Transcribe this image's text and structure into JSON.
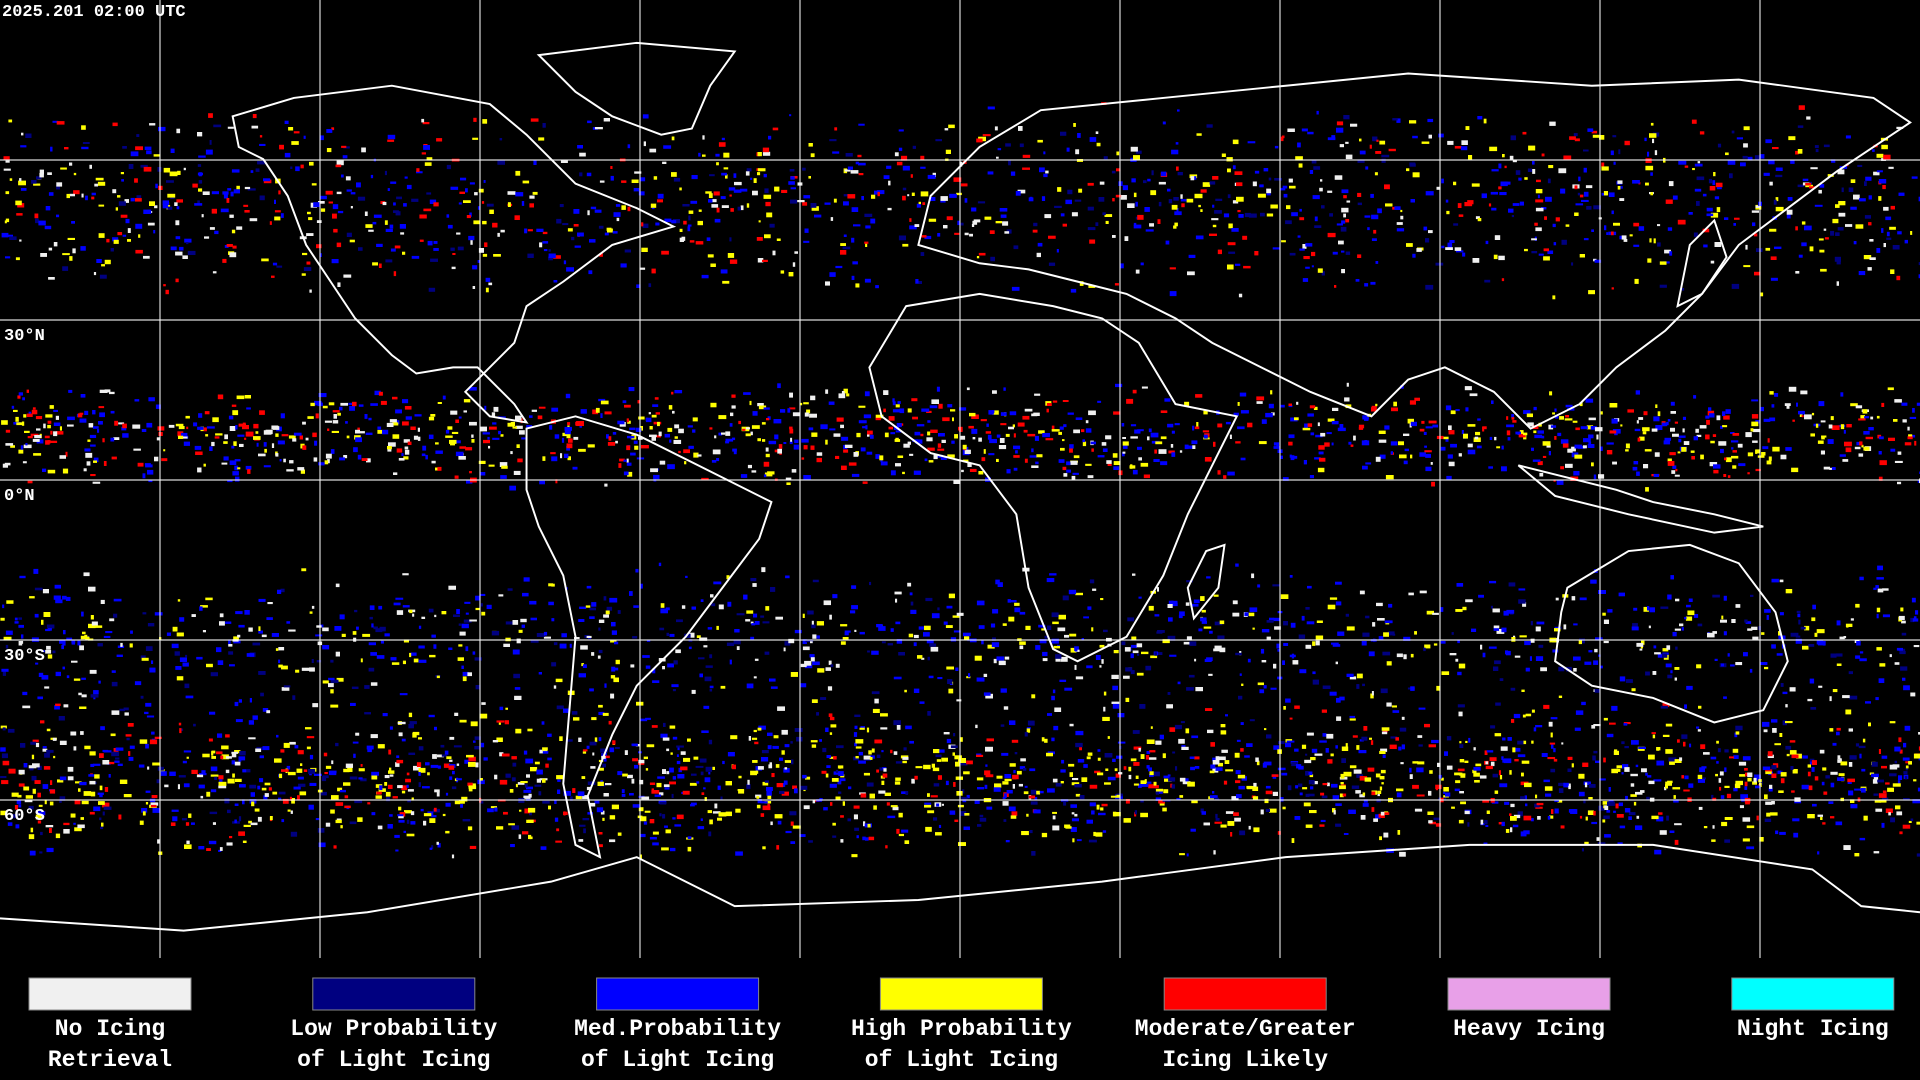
{
  "header": {
    "timestamp": "2025.201 02:00 UTC"
  },
  "map": {
    "latitude_labels": [
      "30°N",
      "0°N",
      "30°S",
      "60°S"
    ]
  },
  "legend": [
    {
      "label_lines": [
        "No Icing",
        "Retrieval"
      ],
      "color": "#f0f0f0"
    },
    {
      "label_lines": [
        "Low Probability",
        "of Light Icing"
      ],
      "color": "#000080"
    },
    {
      "label_lines": [
        "Med.Probability",
        "of Light Icing"
      ],
      "color": "#0000ff"
    },
    {
      "label_lines": [
        "High Probability",
        "of Light Icing"
      ],
      "color": "#ffff00"
    },
    {
      "label_lines": [
        "Moderate/Greater",
        "Icing Likely"
      ],
      "color": "#ff0000"
    },
    {
      "label_lines": [
        "Heavy Icing"
      ],
      "color": "#e8a0e8"
    },
    {
      "label_lines": [
        "Night Icing"
      ],
      "color": "#00ffff"
    }
  ]
}
